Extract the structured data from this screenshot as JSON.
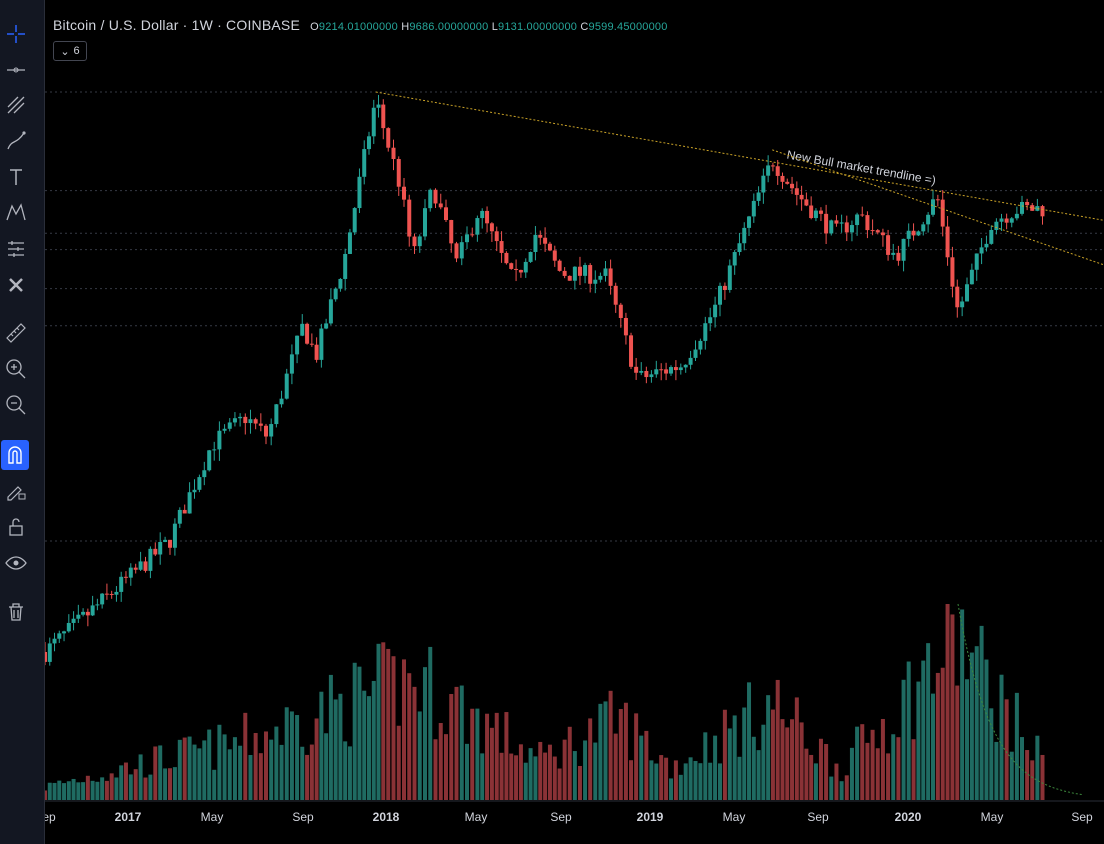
{
  "header": {
    "symbol": "Bitcoin / U.S. Dollar · 1W · COINBASE",
    "ohlc": [
      {
        "k": "O",
        "v": "9214.01000000"
      },
      {
        "k": "H",
        "v": "9686.00000000"
      },
      {
        "k": "L",
        "v": "9131.00000000"
      },
      {
        "k": "C",
        "v": "9599.45000000"
      }
    ],
    "collapse_count": "6"
  },
  "toolbar": [
    {
      "name": "crosshair-icon"
    },
    {
      "name": "horizontal-line-icon"
    },
    {
      "name": "pitchfork-icon"
    },
    {
      "name": "brush-icon"
    },
    {
      "name": "text-tool-icon"
    },
    {
      "name": "pattern-icon"
    },
    {
      "name": "prediction-icon"
    },
    {
      "name": "remove-icon"
    },
    {
      "name": "ruler-icon"
    },
    {
      "name": "zoom-in-icon"
    },
    {
      "name": "zoom-out-icon"
    },
    {
      "name": "magnet-icon"
    },
    {
      "name": "lock-drawing-icon"
    },
    {
      "name": "lock-icon"
    },
    {
      "name": "eye-icon"
    },
    {
      "name": "trash-icon"
    }
  ],
  "colors": {
    "up": "#26a69a",
    "down": "#ef5350",
    "up_vol": "#1f6b62",
    "down_vol": "#8a3236",
    "trend": "#c9a227",
    "grid": "#363a45",
    "axis_text": "#d1d4dc",
    "magnet_active": "#2962ff"
  },
  "chart_data": {
    "type": "candlestick",
    "timeframe": "1W",
    "exchange": "COINBASE",
    "x_tick_labels": [
      "Sep",
      "2017",
      "May",
      "Sep",
      "2018",
      "May",
      "Sep",
      "2019",
      "May",
      "Sep",
      "2020",
      "May",
      "Sep"
    ],
    "x_tick_dates": [
      "2016-09-01",
      "2017-01-01",
      "2017-05-01",
      "2017-09-01",
      "2018-01-01",
      "2018-05-01",
      "2018-09-01",
      "2019-01-01",
      "2019-05-01",
      "2019-09-01",
      "2020-01-01",
      "2020-05-01",
      "2020-09-01"
    ],
    "price_key_points": [
      {
        "date": "2016-09-01",
        "close": 600
      },
      {
        "date": "2017-01-01",
        "close": 950
      },
      {
        "date": "2017-03-01",
        "close": 1200
      },
      {
        "date": "2017-05-01",
        "close": 2200
      },
      {
        "date": "2017-06-15",
        "close": 2600
      },
      {
        "date": "2017-07-15",
        "close": 2300
      },
      {
        "date": "2017-09-01",
        "close": 4600
      },
      {
        "date": "2017-09-20",
        "close": 3800
      },
      {
        "date": "2017-11-01",
        "close": 7000
      },
      {
        "date": "2017-12-17",
        "close": 19000
      },
      {
        "date": "2018-01-20",
        "close": 11000
      },
      {
        "date": "2018-02-06",
        "close": 7000
      },
      {
        "date": "2018-03-05",
        "close": 11000
      },
      {
        "date": "2018-04-05",
        "close": 6800
      },
      {
        "date": "2018-05-05",
        "close": 9500
      },
      {
        "date": "2018-06-25",
        "close": 6000
      },
      {
        "date": "2018-07-25",
        "close": 8200
      },
      {
        "date": "2018-09-01",
        "close": 6400
      },
      {
        "date": "2018-11-01",
        "close": 6300
      },
      {
        "date": "2018-12-15",
        "close": 3300
      },
      {
        "date": "2019-02-15",
        "close": 3600
      },
      {
        "date": "2019-04-01",
        "close": 5000
      },
      {
        "date": "2019-06-26",
        "close": 13000
      },
      {
        "date": "2019-08-01",
        "close": 10500
      },
      {
        "date": "2019-09-25",
        "close": 8200
      },
      {
        "date": "2019-10-28",
        "close": 9200
      },
      {
        "date": "2019-12-15",
        "close": 7100
      },
      {
        "date": "2020-02-12",
        "close": 10300
      },
      {
        "date": "2020-03-13",
        "close": 5000
      },
      {
        "date": "2020-04-30",
        "close": 8800
      },
      {
        "date": "2020-06-01",
        "close": 9500
      },
      {
        "date": "2020-07-15",
        "close": 9600
      }
    ],
    "volume_key_points": [
      {
        "date": "2016-09-01",
        "volume": 0.08
      },
      {
        "date": "2017-06-01",
        "volume": 0.35
      },
      {
        "date": "2017-12-10",
        "volume": 0.65
      },
      {
        "date": "2018-02-06",
        "volume": 0.75
      },
      {
        "date": "2018-08-01",
        "volume": 0.25
      },
      {
        "date": "2018-11-20",
        "volume": 0.5
      },
      {
        "date": "2019-02-01",
        "volume": 0.2
      },
      {
        "date": "2019-06-26",
        "volume": 0.6
      },
      {
        "date": "2019-10-01",
        "volume": 0.2
      },
      {
        "date": "2020-03-13",
        "volume": 1.0
      },
      {
        "date": "2020-07-15",
        "volume": 0.2
      }
    ],
    "annotations": [
      {
        "type": "trendline",
        "label": "New Bull market trendline =)",
        "from": {
          "date": "2017-12-17",
          "price": 19800
        },
        "to": {
          "date": "2020-09-15",
          "price": 9000
        }
      },
      {
        "type": "trendline",
        "label": "",
        "from": {
          "date": "2019-06-26",
          "price": 13800
        },
        "to": {
          "date": "2020-09-15",
          "price": 6900
        }
      },
      {
        "type": "volume-decay-curve",
        "label": "",
        "from": {
          "date": "2020-03-13"
        },
        "to": {
          "date": "2020-09-01"
        }
      }
    ],
    "grid": {
      "horizontal": true,
      "vertical": false
    },
    "legend": "none"
  }
}
